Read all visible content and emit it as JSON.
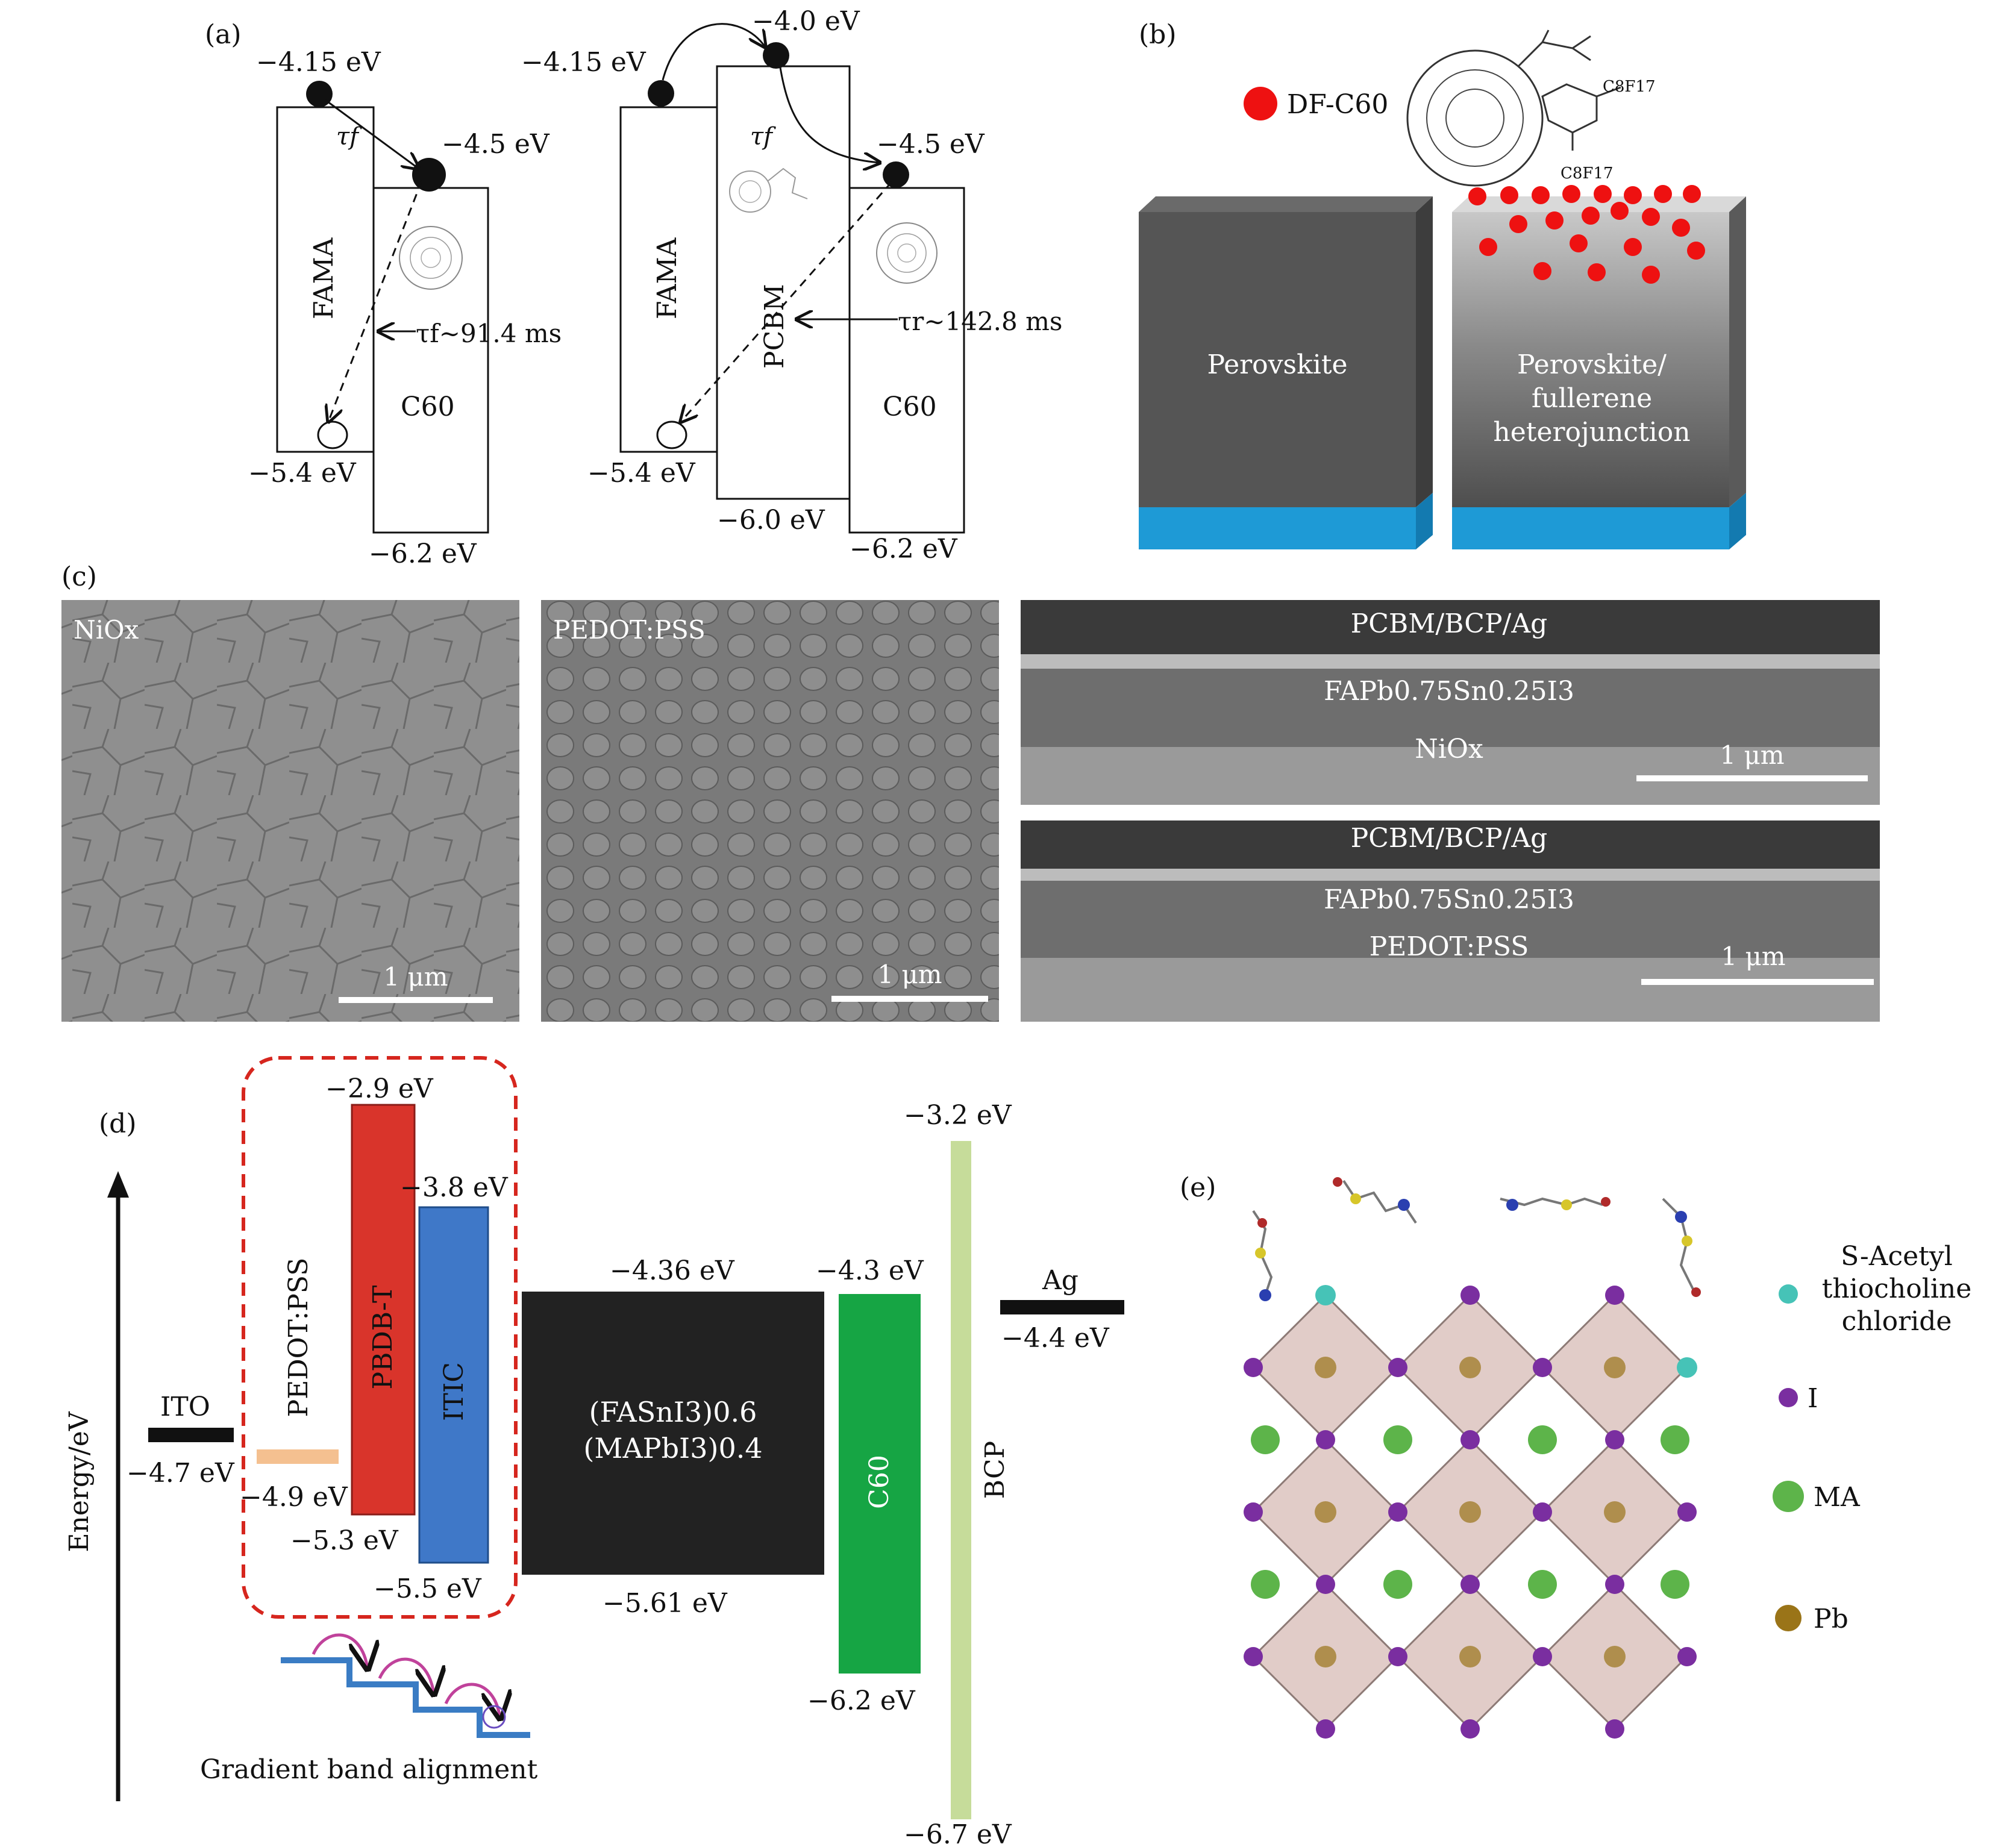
{
  "panel_a": {
    "label": "(a)",
    "left": {
      "e_top": "−4.15 eV",
      "e_c60_lumo": "−4.5 eV",
      "e_fama_homo": "−5.4 eV",
      "e_c60_homo": "−6.2 eV",
      "fama": "FAMA",
      "c60": "C60",
      "tau_top": "τf",
      "tau_mid": "τf∼91.4 ms"
    },
    "right": {
      "e_fama_lumo": "−4.15 eV",
      "e_pcbm_lumo": "−4.0 eV",
      "e_c60_lumo": "−4.5 eV",
      "e_fama_homo": "−5.4 eV",
      "e_pcbm_homo": "−6.0 eV",
      "e_c60_homo": "−6.2 eV",
      "fama": "FAMA",
      "pcbm": "PCBM",
      "c60": "C60",
      "tau_top": "τf",
      "tau_mid": "τr∼142.8 ms"
    }
  },
  "panel_b": {
    "label": "(b)",
    "legend": "DF-C60",
    "sub1": "C8F17",
    "sub2": "C8F17",
    "block1": "Perovskite",
    "block2": [
      "Perovskite/",
      "fullerene",
      "heterojunction"
    ],
    "colors": {
      "block": "#555555",
      "substrate": "#1e9ad6",
      "dot": "#ee1111"
    }
  },
  "panel_c": {
    "label": "(c)",
    "img1_label": "NiOx",
    "img2_label": "PEDOT:PSS",
    "scale": "1 μm",
    "cs1": {
      "top": "PCBM/BCP/Ag",
      "mid": "FAPb0.75Sn0.25I3",
      "bot": "NiOx"
    },
    "cs2": {
      "top": "PCBM/BCP/Ag",
      "mid": "FAPb0.75Sn0.25I3",
      "bot": "PEDOT:PSS"
    }
  },
  "panel_d": {
    "label": "(d)",
    "yaxis": "Energy/eV",
    "ito": "ITO",
    "ito_e": "−4.7 eV",
    "pedot": "PEDOT:PSS",
    "pedot_e": "−4.9 eV",
    "pbdbt": "PBDB-T",
    "pbdbt_top": "−2.9 eV",
    "pbdbt_bot": "−5.3 eV",
    "itic": "ITIC",
    "itic_top": "−3.8 eV",
    "itic_bot": "−5.5 eV",
    "pero_line1": "(FASnI3)0.6",
    "pero_line2": "(MAPbI3)0.4",
    "pero_top": "−4.36 eV",
    "pero_bot": "−5.61 eV",
    "c60": "C60",
    "c60_top": "−4.3 eV",
    "c60_bot": "−6.2 eV",
    "bcp": "BCP",
    "bcp_top": "−3.2 eV",
    "bcp_bot": "−6.7 eV",
    "ag": "Ag",
    "ag_e": "−4.4 eV",
    "gradient": "Gradient band alignment",
    "colors": {
      "pbdbt": "#d9342b",
      "itic": "#3f78c8",
      "pero": "#222222",
      "c60": "#16a544",
      "bcp": "#c6dc9a",
      "pedot": "#f4c090",
      "dash": "#d6261e"
    }
  },
  "panel_e": {
    "label": "(e)",
    "legend": [
      {
        "name": "S-Acetyl thiocholine chloride",
        "lines": [
          "S-Acetyl",
          "thiocholine",
          "chloride"
        ],
        "color": "#46c3b7"
      },
      {
        "name": "I",
        "color": "#7a2ea0"
      },
      {
        "name": "MA",
        "color": "#5db44a"
      },
      {
        "name": "Pb",
        "color": "#9a7418"
      }
    ]
  }
}
